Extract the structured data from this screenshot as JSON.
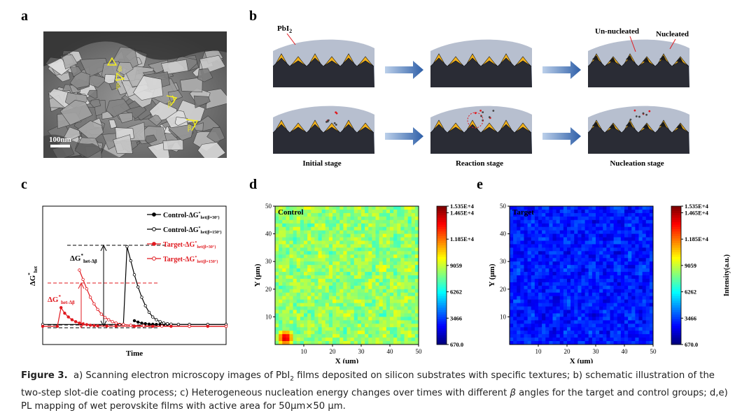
{
  "panels": {
    "a": "a",
    "b": "b",
    "c": "c",
    "d": "d",
    "e": "e"
  },
  "panel_a": {
    "scale_bar_label": "100nm",
    "angle_label": "β"
  },
  "panel_b": {
    "pbi2_label": "PbI",
    "pbi2_sub": "2",
    "unnucleated_label": "Un-nucleated",
    "nucleated_label": "Nucleated",
    "stage_labels": [
      "Initial stage",
      "Reaction stage",
      "Nucleation stage"
    ],
    "colors": {
      "crystal": "#f2b21d",
      "substrate": "#2a2c35",
      "film": "#b7bfcf",
      "arrow": "#2e5fa8"
    }
  },
  "panel_c": {
    "xlabel": "Time",
    "ylabel_main": "ΔG",
    "ylabel_sup": "*",
    "ylabel_sub": "het",
    "annotation_black": {
      "main": "ΔG",
      "sup": "*",
      "sub": "het-Δβ"
    },
    "annotation_red": {
      "main": "ΔG",
      "sup": "*",
      "sub": "het-Δβ"
    },
    "legend": [
      {
        "main": "Control-ΔG",
        "sup": "*",
        "sub": "het(β=30°)",
        "color": "#000000",
        "marker": "filled"
      },
      {
        "main": "Control-ΔG",
        "sup": "*",
        "sub": "het(β=150°)",
        "color": "#000000",
        "marker": "open"
      },
      {
        "main": "Target-ΔG",
        "sup": "*",
        "sub": "het(β=30°)",
        "color": "#e0191f",
        "marker": "filled"
      },
      {
        "main": "Target-ΔG",
        "sup": "*",
        "sub": "het(β=150°)",
        "color": "#e0191f",
        "marker": "open"
      }
    ]
  },
  "chart_data": [
    {
      "panel": "c",
      "type": "line",
      "xlabel": "Time",
      "ylabel": "ΔG*het",
      "xticks": false,
      "yticks": false,
      "xlim": [
        0,
        100
      ],
      "ylim": [
        0,
        100
      ],
      "series": [
        {
          "name": "Control-ΔG*het(β=30°)",
          "x": [
            50,
            52,
            54,
            56,
            58,
            60,
            62,
            64,
            66,
            68,
            70,
            74,
            80,
            90,
            100
          ],
          "y": [
            6,
            4.5,
            3.4,
            2.8,
            2.4,
            2.2,
            2.1,
            2.05,
            2,
            2,
            2,
            2,
            2,
            2,
            2
          ]
        },
        {
          "name": "Control-ΔG*het(β=150°)",
          "x": [
            0,
            42,
            44,
            46,
            48,
            50,
            52,
            54,
            56,
            58,
            60,
            62,
            64,
            66,
            68,
            70,
            74,
            80,
            90,
            100
          ],
          "y": [
            2,
            2,
            2,
            85,
            70,
            55,
            42,
            31,
            22,
            15,
            10,
            7,
            5,
            3.5,
            2.8,
            2.4,
            2.1,
            2,
            2,
            2
          ]
        },
        {
          "name": "Target-ΔG*het(β=30°)",
          "x": [
            0,
            8,
            10,
            12,
            14,
            16,
            18,
            20,
            22,
            24,
            26,
            28,
            30,
            35,
            40,
            50,
            60,
            70,
            80,
            90,
            100
          ],
          "y": [
            0,
            0,
            20,
            14,
            10,
            7,
            5,
            3.5,
            2.5,
            1.8,
            1.2,
            0.8,
            0.5,
            0.3,
            0.2,
            0,
            0,
            0,
            0,
            0,
            0
          ]
        },
        {
          "name": "Target-ΔG*het(β=150°)",
          "x": [
            20,
            22,
            24,
            26,
            28,
            30,
            32,
            34,
            36,
            38,
            40,
            44,
            48,
            55,
            65,
            80,
            100
          ],
          "y": [
            60,
            50,
            40,
            31,
            24,
            18,
            13,
            9.5,
            7,
            5,
            3.5,
            2,
            1.2,
            0.6,
            0.2,
            0,
            0
          ]
        }
      ]
    },
    {
      "panel": "d",
      "type": "heatmap",
      "title": "Control",
      "xlabel": "X (μm)",
      "ylabel": "Y (μm)",
      "xlim": [
        0,
        50
      ],
      "ylim": [
        0,
        50
      ],
      "xticks": [
        10,
        20,
        30,
        40,
        50
      ],
      "yticks": [
        10,
        20,
        30,
        40,
        50
      ],
      "colorbar_label": "Intensity(a.u.)",
      "colorbar_ticks": [
        "1.535E+4",
        "1.465E+4",
        "1.185E+4",
        "9059",
        "6262",
        "3466",
        "670.0"
      ],
      "colorbar_values": [
        15350,
        14650,
        11850,
        9059,
        6262,
        3466,
        670
      ],
      "dominant_color": "#6cd27a",
      "hotspot": {
        "x": 3,
        "y": 3,
        "value": 15350
      }
    },
    {
      "panel": "e",
      "type": "heatmap",
      "title": "Target",
      "xlabel": "X (μm)",
      "ylabel": "Y (μm)",
      "xlim": [
        0,
        50
      ],
      "ylim": [
        0,
        50
      ],
      "xticks": [
        10,
        20,
        30,
        40,
        50
      ],
      "yticks": [
        10,
        20,
        30,
        40,
        50
      ],
      "colorbar_label": "Intensity(a.u.)",
      "colorbar_ticks": [
        "1.535E+4",
        "1.465E+4",
        "1.185E+4",
        "9059",
        "6262",
        "3466",
        "670.0"
      ],
      "colorbar_values": [
        15350,
        14650,
        11850,
        9059,
        6262,
        3466,
        670
      ],
      "dominant_color": "#2b3bea"
    }
  ],
  "caption": {
    "label": "Figure 3.",
    "text_a": "a) Scanning electron microscopy images of PbI",
    "sub_2": "2",
    "text_b": " films deposited on silicon substrates with specific textures; b) schematic illustration of the two-step slot-die coating process; c) Heterogeneous nucleation energy changes over times with different ",
    "beta": "β",
    "text_c": " angles for the target and control groups; d,e) PL mapping of wet perovskite films with active area for 50μm×50 μm."
  }
}
